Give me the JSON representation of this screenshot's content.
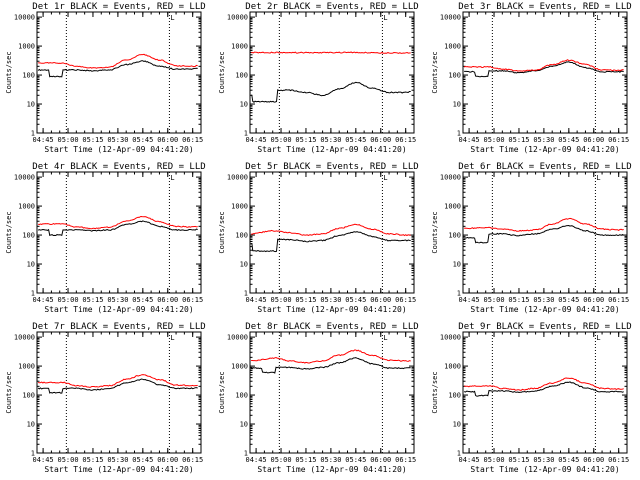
{
  "figure": {
    "x_tick_labels": [
      "04:45",
      "05:00",
      "05:15",
      "05:30",
      "05:45",
      "06:00",
      "06:15"
    ],
    "y_tick_labels": [
      "1",
      "10",
      "100",
      "1000",
      "10000"
    ],
    "xlabel": "Start Time (12-Apr-09 04:41:20)",
    "ylabel": "Counts/sec",
    "corner_mark": "L"
  },
  "chart_data": [
    {
      "type": "line",
      "title": "Det 1r BLACK = Events, RED = LLD",
      "yscale": "log",
      "ylim": [
        1,
        15000
      ],
      "xlim": [
        "04:41:20",
        "06:20:00"
      ],
      "xlabel": "Start Time (12-Apr-09 04:41:20)",
      "ylabel": "Counts/sec",
      "markers": [
        "04:59",
        "06:01"
      ],
      "series": [
        {
          "name": "Events",
          "color": "#000000",
          "x": [
            "04:42",
            "04:49",
            "04:49",
            "04:57",
            "04:57",
            "05:05",
            "05:15",
            "05:25",
            "05:35",
            "05:45",
            "05:55",
            "06:05",
            "06:15",
            "06:18"
          ],
          "values": [
            150,
            150,
            90,
            90,
            150,
            150,
            140,
            150,
            230,
            300,
            200,
            160,
            160,
            170
          ]
        },
        {
          "name": "LLD",
          "color": "#ff0000",
          "x": [
            "04:42",
            "04:57",
            "05:05",
            "05:15",
            "05:25",
            "05:35",
            "05:45",
            "05:55",
            "06:05",
            "06:15",
            "06:18"
          ],
          "values": [
            260,
            260,
            200,
            175,
            190,
            330,
            510,
            330,
            210,
            200,
            210
          ]
        }
      ]
    },
    {
      "type": "line",
      "title": "Det 2r BLACK = Events, RED = LLD",
      "yscale": "log",
      "ylim": [
        1,
        15000
      ],
      "xlim": [
        "04:41:20",
        "06:20:00"
      ],
      "xlabel": "Start Time (12-Apr-09 04:41:20)",
      "ylabel": "Counts/sec",
      "markers": [
        "04:59",
        "06:01"
      ],
      "series": [
        {
          "name": "Events",
          "color": "#000000",
          "x": [
            "04:42",
            "04:43",
            "04:43",
            "04:58",
            "04:58",
            "05:05",
            "05:15",
            "05:25",
            "05:35",
            "05:45",
            "05:55",
            "06:05",
            "06:15",
            "06:18"
          ],
          "values": [
            20,
            20,
            12,
            12,
            30,
            30,
            25,
            20,
            33,
            55,
            35,
            25,
            25,
            27
          ]
        },
        {
          "name": "LLD",
          "color": "#ff0000",
          "x": [
            "04:42",
            "05:00",
            "05:20",
            "05:40",
            "06:00",
            "06:18"
          ],
          "values": [
            600,
            600,
            590,
            600,
            590,
            580
          ]
        }
      ]
    },
    {
      "type": "line",
      "title": "Det 3r BLACK = Events, RED = LLD",
      "yscale": "log",
      "ylim": [
        1,
        15000
      ],
      "xlim": [
        "04:41:20",
        "06:20:00"
      ],
      "xlabel": "Start Time (12-Apr-09 04:41:20)",
      "ylabel": "Counts/sec",
      "markers": [
        "04:59",
        "06:01"
      ],
      "series": [
        {
          "name": "Events",
          "color": "#000000",
          "x": [
            "04:42",
            "04:49",
            "04:49",
            "04:57",
            "04:57",
            "05:05",
            "05:15",
            "05:25",
            "05:35",
            "05:45",
            "05:55",
            "06:05",
            "06:15",
            "06:18"
          ],
          "values": [
            130,
            130,
            90,
            90,
            140,
            140,
            120,
            140,
            200,
            280,
            180,
            130,
            130,
            130
          ]
        },
        {
          "name": "LLD",
          "color": "#ff0000",
          "x": [
            "04:42",
            "04:57",
            "05:05",
            "05:15",
            "05:25",
            "05:35",
            "05:45",
            "05:55",
            "06:05",
            "06:15",
            "06:18"
          ],
          "values": [
            190,
            190,
            160,
            140,
            150,
            230,
            330,
            230,
            150,
            145,
            150
          ]
        }
      ]
    },
    {
      "type": "line",
      "title": "Det 4r BLACK = Events, RED = LLD",
      "yscale": "log",
      "ylim": [
        1,
        15000
      ],
      "xlim": [
        "04:41:20",
        "06:20:00"
      ],
      "xlabel": "Start Time (12-Apr-09 04:41:20)",
      "ylabel": "Counts/sec",
      "markers": [
        "04:59",
        "06:01"
      ],
      "series": [
        {
          "name": "Events",
          "color": "#000000",
          "x": [
            "04:42",
            "04:49",
            "04:49",
            "04:57",
            "04:57",
            "05:05",
            "05:15",
            "05:25",
            "05:35",
            "05:45",
            "05:55",
            "06:05",
            "06:15",
            "06:18"
          ],
          "values": [
            150,
            150,
            100,
            100,
            150,
            150,
            140,
            150,
            230,
            300,
            200,
            150,
            150,
            155
          ]
        },
        {
          "name": "LLD",
          "color": "#ff0000",
          "x": [
            "04:42",
            "04:57",
            "05:05",
            "05:15",
            "05:25",
            "05:35",
            "05:45",
            "05:55",
            "06:05",
            "06:15",
            "06:18"
          ],
          "values": [
            240,
            240,
            190,
            170,
            185,
            300,
            430,
            290,
            200,
            190,
            195
          ]
        }
      ]
    },
    {
      "type": "line",
      "title": "Det 5r BLACK = Events, RED = LLD",
      "yscale": "log",
      "ylim": [
        1,
        15000
      ],
      "xlim": [
        "04:41:20",
        "06:20:00"
      ],
      "xlabel": "Start Time (12-Apr-09 04:41:20)",
      "ylabel": "Counts/sec",
      "markers": [
        "04:59",
        "06:01"
      ],
      "series": [
        {
          "name": "Events",
          "color": "#000000",
          "x": [
            "04:42",
            "04:43",
            "04:43",
            "04:58",
            "04:58",
            "05:05",
            "05:15",
            "05:25",
            "05:35",
            "05:45",
            "05:55",
            "06:05",
            "06:15",
            "06:18"
          ],
          "values": [
            50,
            50,
            28,
            28,
            70,
            70,
            60,
            65,
            95,
            130,
            90,
            65,
            65,
            65
          ]
        },
        {
          "name": "LLD",
          "color": "#ff0000",
          "x": [
            "04:42",
            "04:55",
            "05:05",
            "05:15",
            "05:25",
            "05:35",
            "05:45",
            "05:55",
            "06:05",
            "06:15",
            "06:18"
          ],
          "values": [
            110,
            140,
            120,
            100,
            110,
            170,
            230,
            160,
            110,
            100,
            100
          ]
        }
      ]
    },
    {
      "type": "line",
      "title": "Det 6r BLACK = Events, RED = LLD",
      "yscale": "log",
      "ylim": [
        1,
        15000
      ],
      "xlim": [
        "04:41:20",
        "06:20:00"
      ],
      "xlabel": "Start Time (12-Apr-09 04:41:20)",
      "ylabel": "Counts/sec",
      "markers": [
        "04:59",
        "06:01"
      ],
      "series": [
        {
          "name": "Events",
          "color": "#000000",
          "x": [
            "04:42",
            "04:49",
            "04:49",
            "04:57",
            "04:57",
            "05:05",
            "05:15",
            "05:25",
            "05:35",
            "05:45",
            "05:55",
            "06:05",
            "06:15",
            "06:18"
          ],
          "values": [
            80,
            80,
            55,
            55,
            110,
            110,
            95,
            110,
            160,
            210,
            140,
            100,
            100,
            100
          ]
        },
        {
          "name": "LLD",
          "color": "#ff0000",
          "x": [
            "04:42",
            "04:57",
            "05:05",
            "05:15",
            "05:25",
            "05:35",
            "05:45",
            "05:55",
            "06:05",
            "06:15",
            "06:18"
          ],
          "values": [
            170,
            180,
            160,
            140,
            150,
            240,
            370,
            240,
            160,
            150,
            155
          ]
        }
      ]
    },
    {
      "type": "line",
      "title": "Det 7r BLACK = Events, RED = LLD",
      "yscale": "log",
      "ylim": [
        1,
        15000
      ],
      "xlim": [
        "04:41:20",
        "06:20:00"
      ],
      "xlabel": "Start Time (12-Apr-09 04:41:20)",
      "ylabel": "Counts/sec",
      "markers": [
        "04:59",
        "06:01"
      ],
      "series": [
        {
          "name": "Events",
          "color": "#000000",
          "x": [
            "04:42",
            "04:49",
            "04:49",
            "04:57",
            "04:57",
            "05:05",
            "05:15",
            "05:25",
            "05:35",
            "05:45",
            "05:55",
            "06:05",
            "06:15",
            "06:18"
          ],
          "values": [
            170,
            170,
            120,
            120,
            170,
            170,
            150,
            170,
            260,
            350,
            230,
            170,
            170,
            175
          ]
        },
        {
          "name": "LLD",
          "color": "#ff0000",
          "x": [
            "04:42",
            "04:57",
            "05:05",
            "05:15",
            "05:25",
            "05:35",
            "05:45",
            "05:55",
            "06:05",
            "06:15",
            "06:18"
          ],
          "values": [
            270,
            270,
            210,
            190,
            210,
            350,
            500,
            340,
            220,
            210,
            215
          ]
        }
      ]
    },
    {
      "type": "line",
      "title": "Det 8r BLACK = Events, RED = LLD",
      "yscale": "log",
      "ylim": [
        1,
        15000
      ],
      "xlim": [
        "04:41:20",
        "06:20:00"
      ],
      "xlabel": "Start Time (12-Apr-09 04:41:20)",
      "ylabel": "Counts/sec",
      "markers": [
        "04:59",
        "06:01"
      ],
      "series": [
        {
          "name": "Events",
          "color": "#000000",
          "x": [
            "04:42",
            "04:49",
            "04:49",
            "04:57",
            "04:57",
            "05:05",
            "05:15",
            "05:25",
            "05:35",
            "05:45",
            "05:55",
            "06:05",
            "06:15",
            "06:18"
          ],
          "values": [
            850,
            850,
            600,
            600,
            900,
            900,
            800,
            900,
            1300,
            1900,
            1200,
            850,
            850,
            870
          ]
        },
        {
          "name": "LLD",
          "color": "#ff0000",
          "x": [
            "04:42",
            "04:57",
            "05:05",
            "05:15",
            "05:25",
            "05:35",
            "05:45",
            "05:55",
            "06:05",
            "06:15",
            "06:18"
          ],
          "values": [
            1500,
            1900,
            1500,
            1300,
            1500,
            2400,
            3500,
            2300,
            1600,
            1500,
            1500
          ]
        }
      ]
    },
    {
      "type": "line",
      "title": "Det 9r BLACK = Events, RED = LLD",
      "yscale": "log",
      "ylim": [
        1,
        15000
      ],
      "xlim": [
        "04:41:20",
        "06:20:00"
      ],
      "xlabel": "Start Time (12-Apr-09 04:41:20)",
      "ylabel": "Counts/sec",
      "markers": [
        "04:59",
        "06:01"
      ],
      "series": [
        {
          "name": "Events",
          "color": "#000000",
          "x": [
            "04:42",
            "04:49",
            "04:49",
            "04:57",
            "04:57",
            "05:05",
            "05:15",
            "05:25",
            "05:35",
            "05:45",
            "05:55",
            "06:05",
            "06:15",
            "06:18"
          ],
          "values": [
            130,
            130,
            95,
            95,
            140,
            140,
            125,
            140,
            200,
            280,
            180,
            130,
            130,
            130
          ]
        },
        {
          "name": "LLD",
          "color": "#ff0000",
          "x": [
            "04:42",
            "04:57",
            "05:05",
            "05:15",
            "05:25",
            "05:35",
            "05:45",
            "05:55",
            "06:05",
            "06:15",
            "06:18"
          ],
          "values": [
            200,
            210,
            170,
            150,
            170,
            260,
            390,
            260,
            170,
            160,
            165
          ]
        }
      ]
    }
  ]
}
